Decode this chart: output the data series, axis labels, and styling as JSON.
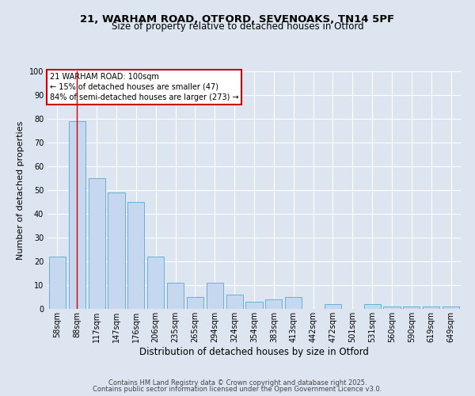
{
  "title_line1": "21, WARHAM ROAD, OTFORD, SEVENOAKS, TN14 5PF",
  "title_line2": "Size of property relative to detached houses in Otford",
  "xlabel": "Distribution of detached houses by size in Otford",
  "ylabel": "Number of detached properties",
  "categories": [
    "58sqm",
    "88sqm",
    "117sqm",
    "147sqm",
    "176sqm",
    "206sqm",
    "235sqm",
    "265sqm",
    "294sqm",
    "324sqm",
    "354sqm",
    "383sqm",
    "413sqm",
    "442sqm",
    "472sqm",
    "501sqm",
    "531sqm",
    "560sqm",
    "590sqm",
    "619sqm",
    "649sqm"
  ],
  "values": [
    22,
    79,
    55,
    49,
    45,
    22,
    11,
    5,
    11,
    6,
    3,
    4,
    5,
    0,
    2,
    0,
    2,
    1,
    1,
    1,
    1
  ],
  "bar_color": "#c5d8ef",
  "bar_edge_color": "#6baed6",
  "background_color": "#dde6f0",
  "grid_color": "#ffffff",
  "vline_x_index": 1,
  "vline_color": "#cc0000",
  "annotation_text": "21 WARHAM ROAD: 100sqm\n← 15% of detached houses are smaller (47)\n84% of semi-detached houses are larger (273) →",
  "annotation_box_color": "#ffffff",
  "annotation_box_edge": "#cc0000",
  "footer_line1": "Contains HM Land Registry data © Crown copyright and database right 2025.",
  "footer_line2": "Contains public sector information licensed under the Open Government Licence v3.0.",
  "ylim": [
    0,
    100
  ],
  "yticks": [
    0,
    10,
    20,
    30,
    40,
    50,
    60,
    70,
    80,
    90,
    100
  ],
  "title1_fontsize": 9.5,
  "title2_fontsize": 8.5,
  "ylabel_fontsize": 8,
  "xlabel_fontsize": 8.5,
  "tick_fontsize": 7,
  "annotation_fontsize": 7,
  "footer_fontsize": 6
}
